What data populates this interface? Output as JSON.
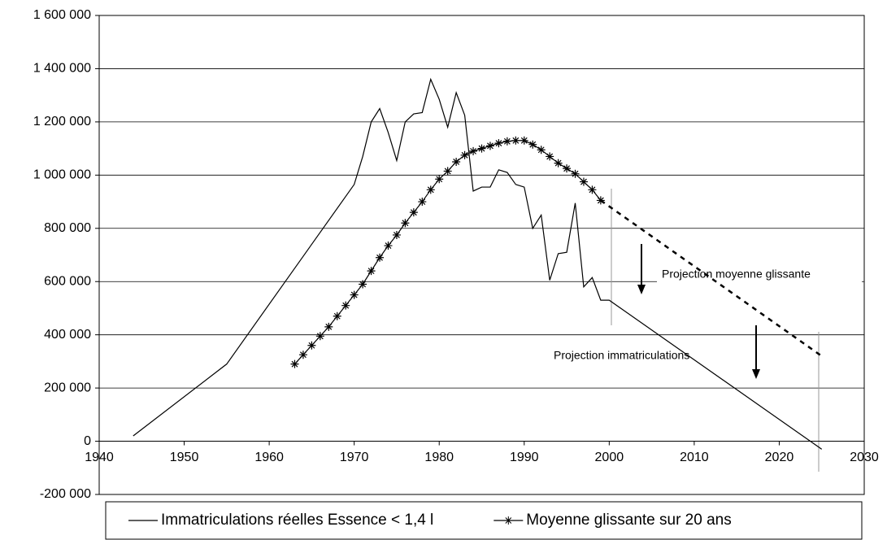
{
  "chart_data": {
    "type": "line",
    "annotations": [
      "Projection moyenne glissante",
      "Projection immatriculations"
    ],
    "xlim": [
      1940,
      2030
    ],
    "xticks": [
      1940,
      1950,
      1960,
      1970,
      1980,
      1990,
      2000,
      2010,
      2020,
      2030
    ],
    "ylim": [
      -200000,
      1600000
    ],
    "yticks": [
      {
        "value": -200000,
        "label": "-200 000"
      },
      0,
      {
        "value": 200000,
        "label": "200 000"
      },
      {
        "value": 400000,
        "label": "400 000"
      },
      {
        "value": 600000,
        "label": "600 000"
      },
      {
        "value": 800000,
        "label": "800 000"
      },
      {
        "value": 1000000,
        "label": "1 000 000"
      },
      {
        "value": 1200000,
        "label": "1 200 000"
      },
      {
        "value": 1400000,
        "label": "1 400 000"
      },
      {
        "value": 1600000,
        "label": "1 600 000"
      }
    ],
    "grid": true,
    "legend": "bottom",
    "series": [
      {
        "name": "Immatriculations réelles Essence < 1,4 l",
        "color": "#000000",
        "marker": "none",
        "style": "solid",
        "x": [
          1944,
          1955,
          1970,
          1971,
          1972,
          1973,
          1974,
          1975,
          1976,
          1977,
          1978,
          1979,
          1980,
          1981,
          1982,
          1983,
          1984,
          1985,
          1986,
          1987,
          1988,
          1989,
          1990,
          1991,
          1992,
          1993,
          1994,
          1995,
          1996,
          1997,
          1998,
          1999,
          2000,
          2025
        ],
        "values": [
          20000,
          290000,
          965000,
          1070000,
          1200000,
          1250000,
          1160000,
          1055000,
          1200000,
          1230000,
          1235000,
          1360000,
          1285000,
          1180000,
          1310000,
          1225000,
          940000,
          955000,
          955000,
          1020000,
          1010000,
          965000,
          955000,
          800000,
          850000,
          605000,
          705000,
          710000,
          895000,
          580000,
          615000,
          530000,
          530000,
          -30000
        ]
      },
      {
        "name": "Moyenne glissante sur 20 ans",
        "color": "#000000",
        "marker": "star",
        "style": "solid",
        "x": [
          1963,
          1964,
          1965,
          1966,
          1967,
          1968,
          1969,
          1970,
          1971,
          1972,
          1973,
          1974,
          1975,
          1976,
          1977,
          1978,
          1979,
          1980,
          1981,
          1982,
          1983,
          1984,
          1985,
          1986,
          1987,
          1988,
          1989,
          1990,
          1991,
          1992,
          1993,
          1994,
          1995,
          1996,
          1997,
          1998,
          1999
        ],
        "values": [
          290000,
          325000,
          360000,
          395000,
          430000,
          470000,
          510000,
          550000,
          590000,
          640000,
          690000,
          735000,
          775000,
          820000,
          860000,
          900000,
          945000,
          985000,
          1015000,
          1050000,
          1075000,
          1090000,
          1100000,
          1110000,
          1120000,
          1127000,
          1130000,
          1130000,
          1115000,
          1095000,
          1070000,
          1045000,
          1025000,
          1005000,
          975000,
          945000,
          905000
        ]
      },
      {
        "color": "#000000",
        "marker": "none",
        "style": "dashed",
        "x": [
          1999,
          2025
        ],
        "values": [
          905000,
          320000
        ]
      }
    ]
  }
}
